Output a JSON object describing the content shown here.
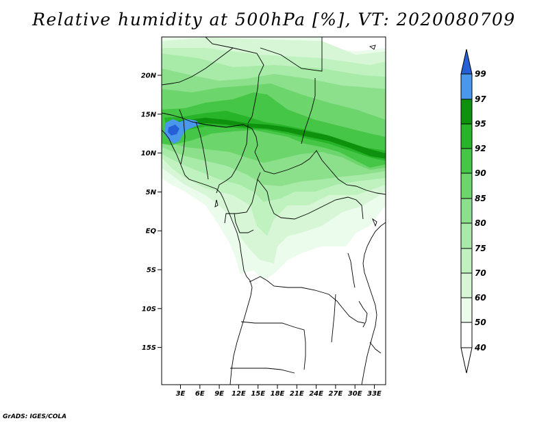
{
  "title": "Relative humidity at 500hPa [%], VT: 2020080709",
  "credit": "GrADS: IGES/COLA",
  "colors": {
    "c40": "#ecfcec",
    "c50": "#d6f6d6",
    "c60": "#c0f2c0",
    "c70": "#a8eaa8",
    "c75": "#8ce08c",
    "c80": "#6cd66c",
    "c85": "#46c646",
    "c90": "#28b428",
    "c92": "#0e920e",
    "c95": "#4a98ec",
    "c97": "#2660d6",
    "c99": "#2660d6"
  },
  "map": {
    "lat_labels": [
      "20N",
      "15N",
      "10N",
      "5N",
      "EQ",
      "5S",
      "10S",
      "15S"
    ],
    "lon_labels": [
      "3E",
      "6E",
      "9E",
      "12E",
      "15E",
      "18E",
      "21E",
      "24E",
      "27E",
      "30E",
      "33E"
    ]
  },
  "colorbar": {
    "labels": [
      "99",
      "97",
      "95",
      "92",
      "90",
      "85",
      "80",
      "75",
      "70",
      "60",
      "50",
      "40"
    ],
    "levels": [
      {
        "min": 97,
        "max": 100,
        "color": "#2660d6"
      },
      {
        "min": 95,
        "max": 97,
        "color": "#4a98ec"
      },
      {
        "min": 92,
        "max": 95,
        "color": "#0e920e"
      },
      {
        "min": 90,
        "max": 92,
        "color": "#28b428"
      },
      {
        "min": 85,
        "max": 90,
        "color": "#46c646"
      },
      {
        "min": 80,
        "max": 85,
        "color": "#6cd66c"
      },
      {
        "min": 75,
        "max": 80,
        "color": "#8ce08c"
      },
      {
        "min": 70,
        "max": 75,
        "color": "#a8eaa8"
      },
      {
        "min": 60,
        "max": 70,
        "color": "#c0f2c0"
      },
      {
        "min": 50,
        "max": 60,
        "color": "#d6f6d6"
      },
      {
        "min": 40,
        "max": 50,
        "color": "#ecfcec"
      },
      {
        "min": 0,
        "max": 40,
        "color": "#ffffff"
      }
    ]
  }
}
